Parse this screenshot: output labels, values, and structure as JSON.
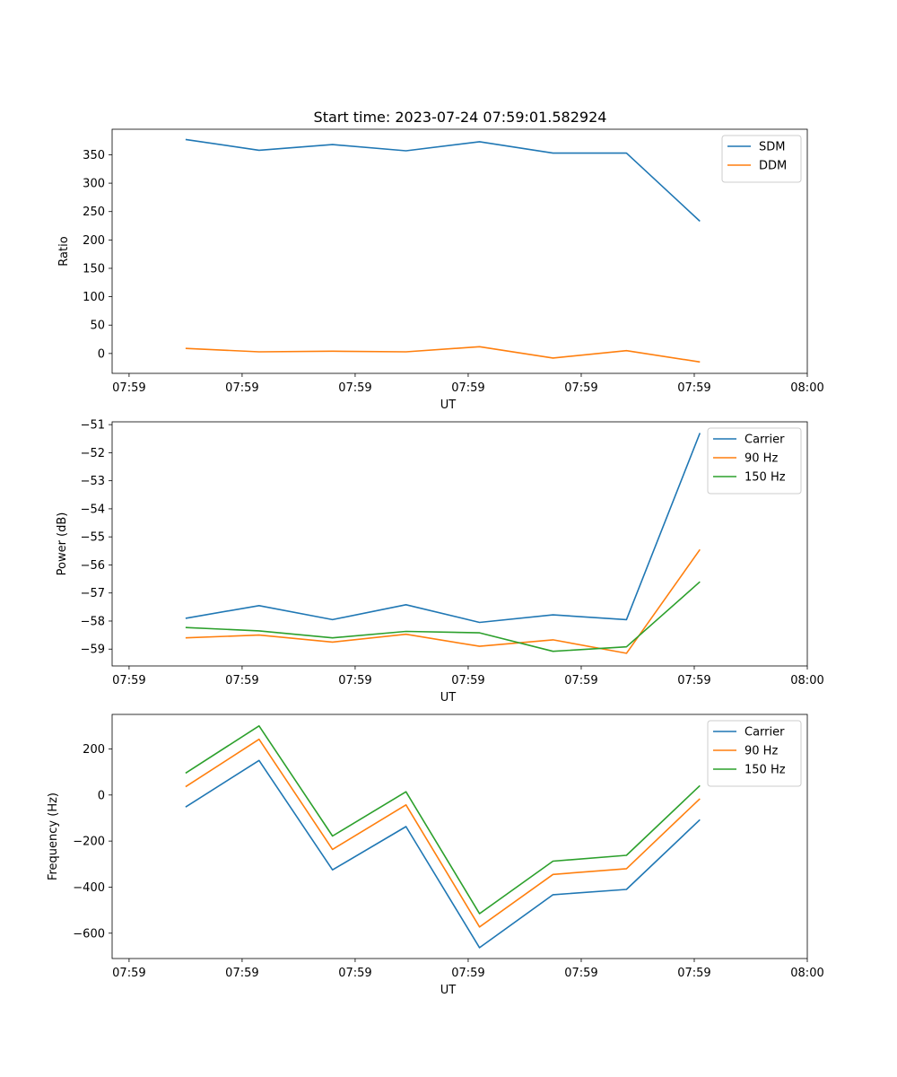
{
  "figure": {
    "title": "Start time: 2023-07-24 07:59:01.582924"
  },
  "chart_data": [
    {
      "type": "line",
      "xlabel": "UT",
      "ylabel": "Ratio",
      "x": [
        0.5,
        1.15,
        1.8,
        2.45,
        3.1,
        3.75,
        4.4,
        5.05
      ],
      "xlim": [
        -0.15,
        6.0
      ],
      "xticks": [
        0,
        1,
        2,
        3,
        4,
        5,
        6
      ],
      "xticklabels": [
        "07:59",
        "07:59",
        "07:59",
        "07:59",
        "07:59",
        "07:59",
        "08:00"
      ],
      "ylim": [
        -35,
        395
      ],
      "yticks": [
        0,
        50,
        100,
        150,
        200,
        250,
        300,
        350
      ],
      "yticklabels": [
        "0",
        "50",
        "100",
        "150",
        "200",
        "250",
        "300",
        "350"
      ],
      "legend_position": "top-right",
      "series": [
        {
          "name": "SDM",
          "color": "#1f77b4",
          "values": [
            377,
            358,
            368,
            357,
            373,
            353,
            353,
            233
          ]
        },
        {
          "name": "DDM",
          "color": "#ff7f0e",
          "values": [
            9,
            3,
            4,
            3,
            12,
            -8,
            5,
            -15
          ]
        }
      ]
    },
    {
      "type": "line",
      "xlabel": "UT",
      "ylabel": "Power (dB)",
      "x": [
        0.5,
        1.15,
        1.8,
        2.45,
        3.1,
        3.75,
        4.4,
        5.05
      ],
      "xlim": [
        -0.15,
        6.0
      ],
      "xticks": [
        0,
        1,
        2,
        3,
        4,
        5,
        6
      ],
      "xticklabels": [
        "07:59",
        "07:59",
        "07:59",
        "07:59",
        "07:59",
        "07:59",
        "08:00"
      ],
      "ylim": [
        -59.6,
        -50.9
      ],
      "yticks": [
        -59,
        -58,
        -57,
        -56,
        -55,
        -54,
        -53,
        -52,
        -51
      ],
      "yticklabels": [
        "−59",
        "−58",
        "−57",
        "−56",
        "−55",
        "−54",
        "−53",
        "−52",
        "−51"
      ],
      "legend_position": "top-right",
      "series": [
        {
          "name": "Carrier",
          "color": "#1f77b4",
          "values": [
            -57.9,
            -57.45,
            -57.95,
            -57.42,
            -58.05,
            -57.78,
            -57.95,
            -51.3
          ]
        },
        {
          "name": "90 Hz",
          "color": "#ff7f0e",
          "values": [
            -58.6,
            -58.5,
            -58.75,
            -58.47,
            -58.9,
            -58.67,
            -59.15,
            -55.45
          ]
        },
        {
          "name": "150 Hz",
          "color": "#2ca02c",
          "values": [
            -58.23,
            -58.35,
            -58.6,
            -58.37,
            -58.42,
            -59.08,
            -58.92,
            -56.6
          ]
        }
      ]
    },
    {
      "type": "line",
      "xlabel": "UT",
      "ylabel": "Frequency (Hz)",
      "x": [
        0.5,
        1.15,
        1.8,
        2.45,
        3.1,
        3.75,
        4.4,
        5.05
      ],
      "xlim": [
        -0.15,
        6.0
      ],
      "xticks": [
        0,
        1,
        2,
        3,
        4,
        5,
        6
      ],
      "xticklabels": [
        "07:59",
        "07:59",
        "07:59",
        "07:59",
        "07:59",
        "07:59",
        "08:00"
      ],
      "ylim": [
        -710,
        350
      ],
      "yticks": [
        -600,
        -400,
        -200,
        0,
        200
      ],
      "yticklabels": [
        "−600",
        "−400",
        "−200",
        "0",
        "200"
      ],
      "legend_position": "top-right",
      "series": [
        {
          "name": "Carrier",
          "color": "#1f77b4",
          "values": [
            -52,
            150,
            -325,
            -137,
            -663,
            -433,
            -410,
            -107
          ]
        },
        {
          "name": "90 Hz",
          "color": "#ff7f0e",
          "values": [
            36,
            242,
            -236,
            -43,
            -573,
            -345,
            -320,
            -16
          ]
        },
        {
          "name": "150 Hz",
          "color": "#2ca02c",
          "values": [
            95,
            300,
            -178,
            14,
            -515,
            -287,
            -262,
            41
          ]
        }
      ]
    }
  ]
}
